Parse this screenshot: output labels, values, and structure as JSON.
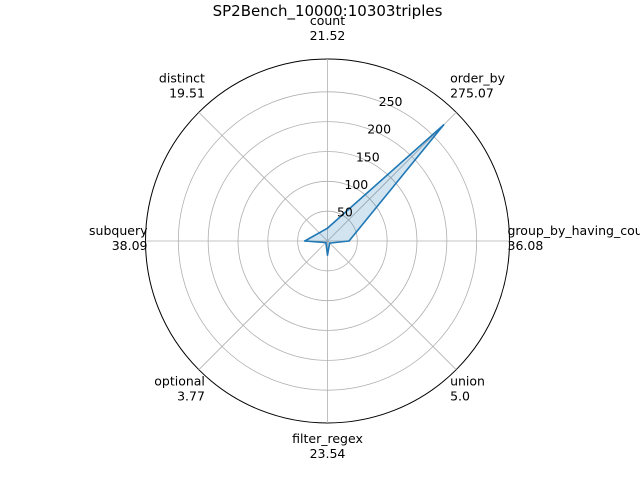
{
  "chart_data": {
    "type": "radar",
    "title": "SP2Bench_10000:10303triples",
    "categories": [
      "count",
      "order_by",
      "group_by_having_count_distinct",
      "union",
      "filter_regex",
      "optional",
      "subquery",
      "distinct"
    ],
    "value_labels": [
      "21.52",
      "275.07",
      "36.08",
      "5.0",
      "23.54",
      "3.77",
      "38.09",
      "19.51"
    ],
    "values": [
      21.52,
      275.07,
      36.08,
      5.0,
      23.54,
      3.77,
      38.09,
      19.51
    ],
    "radial_ticks": [
      "50",
      "100",
      "150",
      "200",
      "250"
    ],
    "radial_tick_values": [
      50,
      100,
      150,
      200,
      250
    ],
    "rmax": 305,
    "grid": true,
    "line_color": "#1f77b4",
    "fill_color": "#1f77b4"
  }
}
